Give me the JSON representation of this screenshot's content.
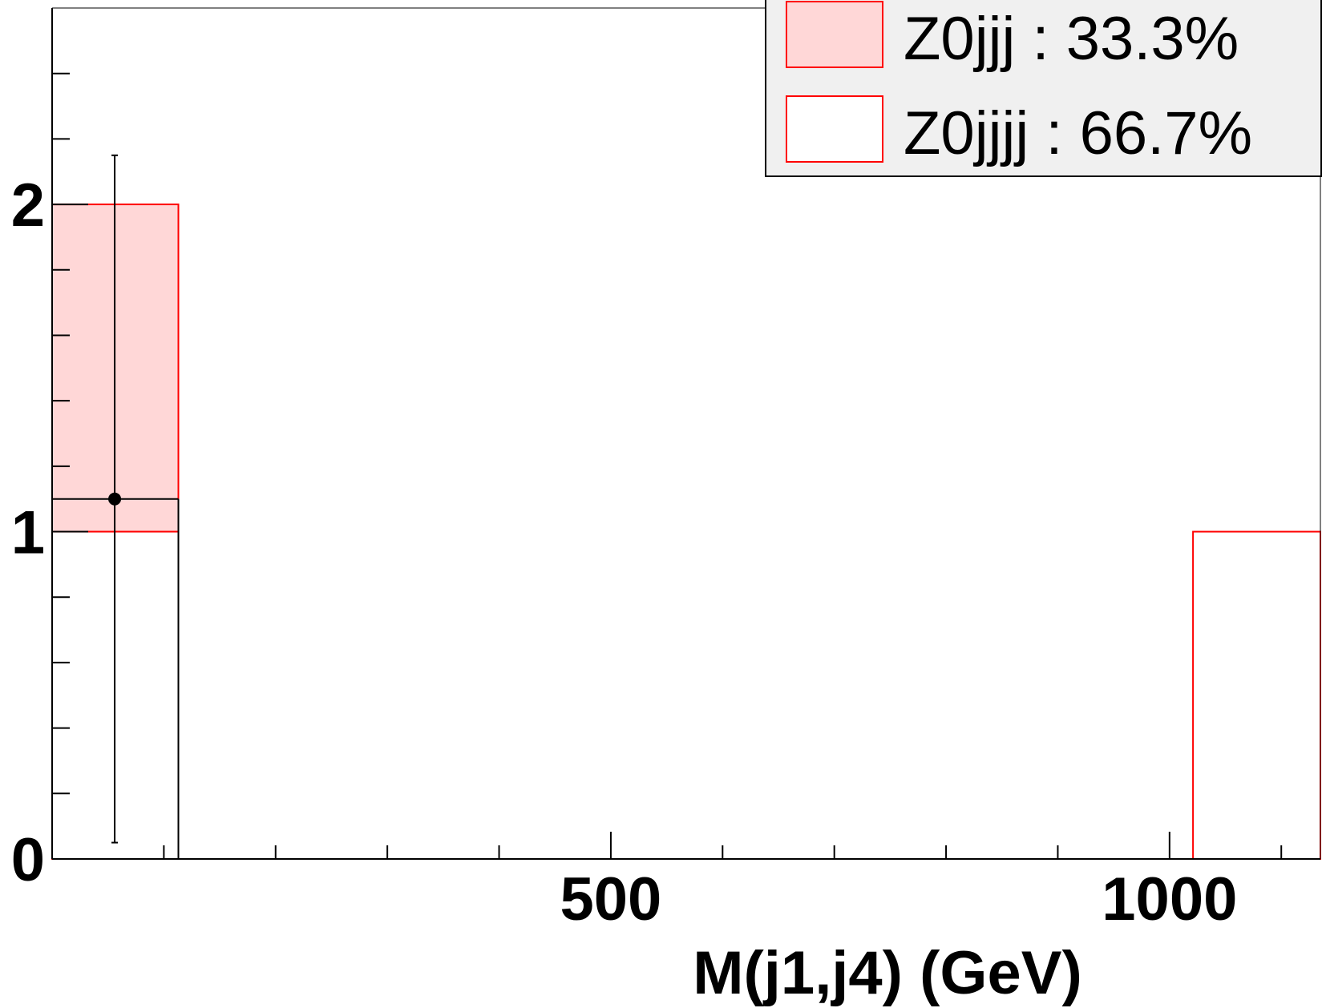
{
  "chart_data": {
    "type": "bar",
    "title": "",
    "xlabel": "M(j1,j4) (GeV)",
    "ylabel": "",
    "xlim": [
      0,
      1135
    ],
    "ylim": [
      0,
      2.6
    ],
    "x_ticks": [
      {
        "value": 500,
        "label": "500"
      },
      {
        "value": 1000,
        "label": "1000"
      }
    ],
    "y_ticks": [
      {
        "value": 0,
        "label": "0"
      },
      {
        "value": 1,
        "label": "1"
      },
      {
        "value": 2,
        "label": "2"
      }
    ],
    "grid": false,
    "legend_position": "top-right",
    "series": [
      {
        "name": "Z0jjj : 33.3%",
        "style": "filled",
        "fill_color": "#ffd7d7",
        "line_color": "#ff0000",
        "bins": [
          {
            "x0": 0,
            "x1": 113,
            "y0": 1,
            "y1": 2
          }
        ]
      },
      {
        "name": "Z0jjjj : 66.7%",
        "style": "hollow",
        "fill_color": "#ffffff",
        "line_color": "#ff0000",
        "bins": [
          {
            "x0": 0,
            "x1": 113,
            "y0": 0,
            "y1": 1
          },
          {
            "x0": 1021,
            "x1": 1135,
            "y0": 0,
            "y1": 1
          }
        ]
      }
    ],
    "data_points": [
      {
        "x0": 0,
        "x1": 113,
        "x": 56,
        "y": 1.1,
        "err_low": 1.05,
        "err_high": 1.05
      }
    ],
    "colors": {
      "frame": "#000000",
      "legend_background": "#f0f0f0"
    }
  }
}
